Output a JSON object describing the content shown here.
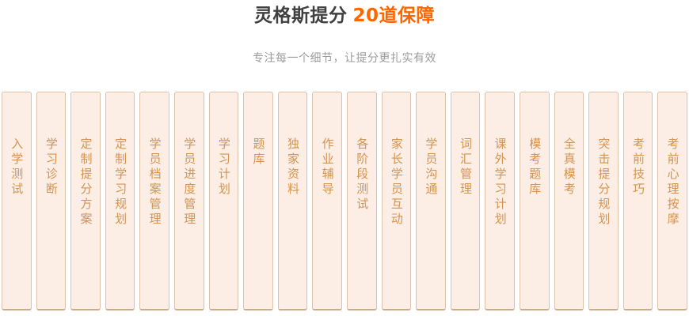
{
  "header": {
    "title_main": "灵格斯提分",
    "title_highlight": "20道保障",
    "subtitle": "专注每一个细节，让提分更扎实有效"
  },
  "colors": {
    "accent_orange": "#ff6600",
    "title_gray": "#404040",
    "subtitle_gray": "#9b9b9b",
    "card_background": "#fdeee5",
    "card_border": "#dcc2a8",
    "card_border_bottom": "#c9ac8c",
    "card_text": "#d4934e"
  },
  "features": [
    "入学测试",
    "学习诊断",
    "定制提分方案",
    "定制学习规划",
    "学员档案管理",
    "学员进度管理",
    "学习计划",
    "题库",
    "独家资料",
    "作业辅导",
    "各阶段测试",
    "家长学员互动",
    "学员沟通",
    "词汇管理",
    "课外学习计划",
    "模考题库",
    "全真模考",
    "突击提分规划",
    "考前技巧",
    "考前心理按摩"
  ]
}
